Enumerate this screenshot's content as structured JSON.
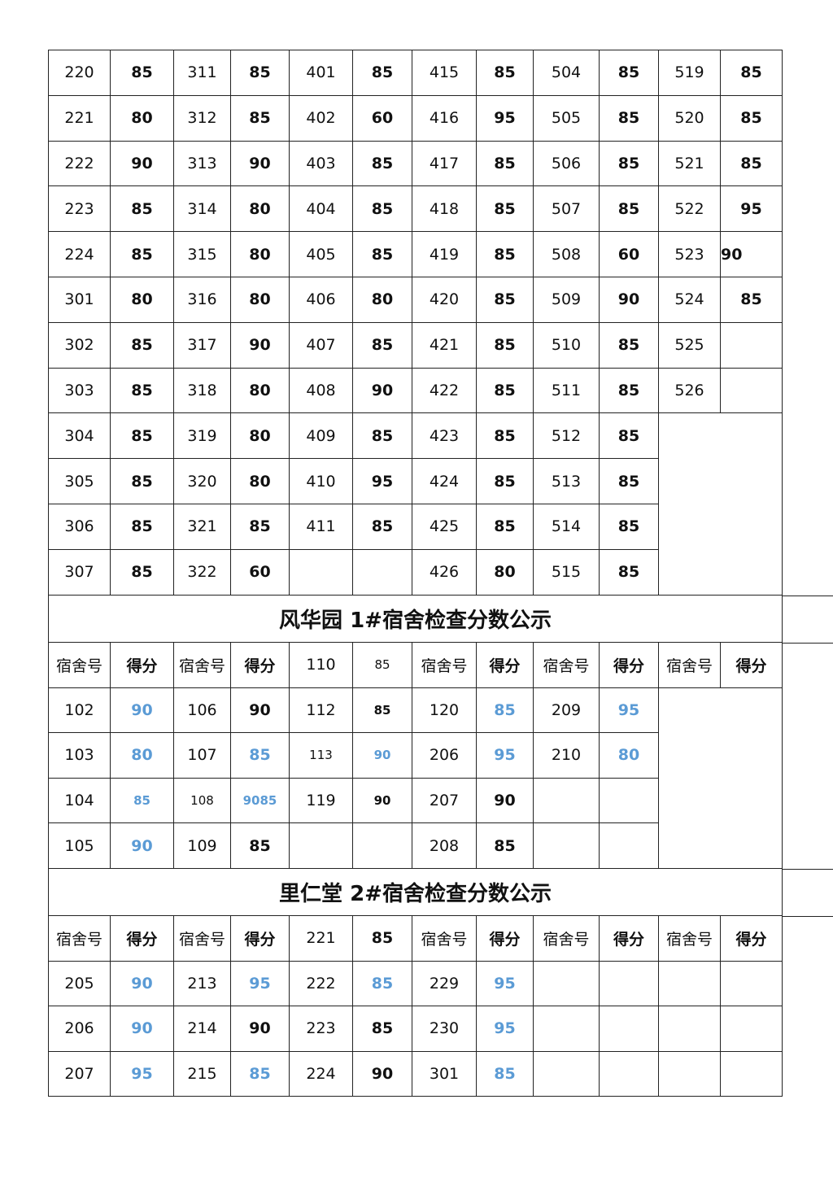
{
  "colors": {
    "blue_score": "#5b9bd5",
    "text": "#111111"
  },
  "table1": {
    "rows": [
      [
        [
          "220",
          "r"
        ],
        [
          "85",
          "b"
        ],
        [
          "311",
          "r"
        ],
        [
          "85",
          "b"
        ],
        [
          "401",
          "r"
        ],
        [
          "85",
          "b"
        ],
        [
          "415",
          "r"
        ],
        [
          "85",
          "b"
        ],
        [
          "504",
          "r"
        ],
        [
          "85",
          "b"
        ],
        [
          "519",
          "r"
        ],
        [
          "85",
          "b"
        ]
      ],
      [
        [
          "221",
          "r"
        ],
        [
          "80",
          "b"
        ],
        [
          "312",
          "r"
        ],
        [
          "85",
          "b"
        ],
        [
          "402",
          "r"
        ],
        [
          "60",
          "b"
        ],
        [
          "416",
          "r"
        ],
        [
          "95",
          "b"
        ],
        [
          "505",
          "r"
        ],
        [
          "85",
          "b"
        ],
        [
          "520",
          "r"
        ],
        [
          "85",
          "b"
        ]
      ],
      [
        [
          "222",
          "r"
        ],
        [
          "90",
          "b"
        ],
        [
          "313",
          "r"
        ],
        [
          "90",
          "b"
        ],
        [
          "403",
          "r"
        ],
        [
          "85",
          "b"
        ],
        [
          "417",
          "r"
        ],
        [
          "85",
          "b"
        ],
        [
          "506",
          "r"
        ],
        [
          "85",
          "b"
        ],
        [
          "521",
          "r"
        ],
        [
          "85",
          "b"
        ]
      ],
      [
        [
          "223",
          "r"
        ],
        [
          "85",
          "b"
        ],
        [
          "314",
          "r"
        ],
        [
          "80",
          "b"
        ],
        [
          "404",
          "r"
        ],
        [
          "85",
          "b"
        ],
        [
          "418",
          "r"
        ],
        [
          "85",
          "b"
        ],
        [
          "507",
          "r"
        ],
        [
          "85",
          "b"
        ],
        [
          "522",
          "r"
        ],
        [
          "95",
          "b"
        ]
      ],
      [
        [
          "224",
          "r"
        ],
        [
          "85",
          "b"
        ],
        [
          "315",
          "r"
        ],
        [
          "80",
          "b"
        ],
        [
          "405",
          "r"
        ],
        [
          "85",
          "b"
        ],
        [
          "419",
          "r"
        ],
        [
          "85",
          "b"
        ],
        [
          "508",
          "r"
        ],
        [
          "60",
          "b"
        ],
        [
          "523",
          "r"
        ],
        [
          "90",
          "b left"
        ]
      ],
      [
        [
          "301",
          "r"
        ],
        [
          "80",
          "b"
        ],
        [
          "316",
          "r"
        ],
        [
          "80",
          "b"
        ],
        [
          "406",
          "r"
        ],
        [
          "80",
          "b"
        ],
        [
          "420",
          "r"
        ],
        [
          "85",
          "b"
        ],
        [
          "509",
          "r"
        ],
        [
          "90",
          "b"
        ],
        [
          "524",
          "r"
        ],
        [
          "85",
          "b"
        ]
      ],
      [
        [
          "302",
          "r"
        ],
        [
          "85",
          "b"
        ],
        [
          "317",
          "r"
        ],
        [
          "90",
          "b"
        ],
        [
          "407",
          "r"
        ],
        [
          "85",
          "b"
        ],
        [
          "421",
          "r"
        ],
        [
          "85",
          "b"
        ],
        [
          "510",
          "r"
        ],
        [
          "85",
          "b"
        ],
        [
          "525",
          "r"
        ],
        [
          "",
          "r"
        ]
      ],
      [
        [
          "303",
          "r"
        ],
        [
          "85",
          "b"
        ],
        [
          "318",
          "r"
        ],
        [
          "80",
          "b"
        ],
        [
          "408",
          "r"
        ],
        [
          "90",
          "b"
        ],
        [
          "422",
          "r"
        ],
        [
          "85",
          "b"
        ],
        [
          "511",
          "r"
        ],
        [
          "85",
          "b"
        ],
        [
          "526",
          "r"
        ],
        [
          "",
          "r"
        ]
      ],
      [
        [
          "304",
          "r"
        ],
        [
          "85",
          "b"
        ],
        [
          "319",
          "r"
        ],
        [
          "80",
          "b"
        ],
        [
          "409",
          "r"
        ],
        [
          "85",
          "b"
        ],
        [
          "423",
          "r"
        ],
        [
          "85",
          "b"
        ],
        [
          "512",
          "r"
        ],
        [
          "85",
          "b"
        ]
      ],
      [
        [
          "305",
          "r"
        ],
        [
          "85",
          "b"
        ],
        [
          "320",
          "r"
        ],
        [
          "80",
          "b"
        ],
        [
          "410",
          "r"
        ],
        [
          "95",
          "b"
        ],
        [
          "424",
          "r"
        ],
        [
          "85",
          "b"
        ],
        [
          "513",
          "r"
        ],
        [
          "85",
          "b"
        ]
      ],
      [
        [
          "306",
          "r"
        ],
        [
          "85",
          "b"
        ],
        [
          "321",
          "r"
        ],
        [
          "85",
          "b"
        ],
        [
          "411",
          "r"
        ],
        [
          "85",
          "b"
        ],
        [
          "425",
          "r"
        ],
        [
          "85",
          "b"
        ],
        [
          "514",
          "r"
        ],
        [
          "85",
          "b"
        ]
      ],
      [
        [
          "307",
          "r"
        ],
        [
          "85",
          "b"
        ],
        [
          "322",
          "r"
        ],
        [
          "60",
          "b"
        ],
        [
          "",
          "r"
        ],
        [
          "",
          "r"
        ],
        [
          "426",
          "r"
        ],
        [
          "80",
          "b"
        ],
        [
          "515",
          "r"
        ],
        [
          "85",
          "b"
        ]
      ]
    ]
  },
  "table2": {
    "title": "风华园 1#宿舍检查分数公示",
    "rows": [
      [
        [
          "宿舍号",
          "r"
        ],
        [
          "得分",
          "b"
        ],
        [
          "宿舍号",
          "r"
        ],
        [
          "得分",
          "b"
        ],
        [
          "110",
          "r"
        ],
        [
          "85",
          "r sm"
        ],
        [
          "宿舍号",
          "r"
        ],
        [
          "得分",
          "b"
        ],
        [
          "宿舍号",
          "r"
        ],
        [
          "得分",
          "b"
        ],
        [
          "宿舍号",
          "r"
        ],
        [
          "得分",
          "b"
        ]
      ],
      [
        [
          "102",
          "r"
        ],
        [
          "90",
          "blue"
        ],
        [
          "106",
          "r"
        ],
        [
          "90",
          "b"
        ],
        [
          "112",
          "r"
        ],
        [
          "85",
          "b sm"
        ],
        [
          "120",
          "r"
        ],
        [
          "85",
          "blue"
        ],
        [
          "209",
          "r"
        ],
        [
          "95",
          "blue"
        ]
      ],
      [
        [
          "103",
          "r"
        ],
        [
          "80",
          "blue"
        ],
        [
          "107",
          "r"
        ],
        [
          "85",
          "blue"
        ],
        [
          "113",
          "r sm"
        ],
        [
          "90",
          "blue sm"
        ],
        [
          "206",
          "r"
        ],
        [
          "95",
          "blue"
        ],
        [
          "210",
          "r"
        ],
        [
          "80",
          "blue"
        ]
      ],
      [
        [
          "104",
          "r"
        ],
        [
          "85",
          "blue sm"
        ],
        [
          "108",
          "r sm"
        ],
        [
          "9085",
          "blue sm"
        ],
        [
          "119",
          "r"
        ],
        [
          "90",
          "b sm"
        ],
        [
          "207",
          "r"
        ],
        [
          "90",
          "b"
        ],
        [
          "",
          "r"
        ],
        [
          "",
          "r"
        ]
      ],
      [
        [
          "105",
          "r"
        ],
        [
          "90",
          "blue"
        ],
        [
          "109",
          "r"
        ],
        [
          "85",
          "b"
        ],
        [
          "",
          "r"
        ],
        [
          "",
          "r"
        ],
        [
          "208",
          "r"
        ],
        [
          "85",
          "b"
        ],
        [
          "",
          "r"
        ],
        [
          "",
          "r"
        ]
      ]
    ]
  },
  "table3": {
    "title": "里仁堂 2#宿舍检查分数公示",
    "rows": [
      [
        [
          "宿舍号",
          "r"
        ],
        [
          "得分",
          "b"
        ],
        [
          "宿舍号",
          "r"
        ],
        [
          "得分",
          "b"
        ],
        [
          "221",
          "r"
        ],
        [
          "85",
          "b"
        ],
        [
          "宿舍号",
          "r"
        ],
        [
          "得分",
          "b"
        ],
        [
          "宿舍号",
          "r"
        ],
        [
          "得分",
          "b"
        ],
        [
          "宿舍号",
          "r"
        ],
        [
          "得分",
          "b"
        ]
      ],
      [
        [
          "205",
          "r"
        ],
        [
          "90",
          "blue"
        ],
        [
          "213",
          "r"
        ],
        [
          "95",
          "blue"
        ],
        [
          "222",
          "r"
        ],
        [
          "85",
          "blue"
        ],
        [
          "229",
          "r"
        ],
        [
          "95",
          "blue"
        ],
        [
          "",
          "r"
        ],
        [
          "",
          "r"
        ],
        [
          "",
          "r"
        ],
        [
          "",
          "r"
        ]
      ],
      [
        [
          "206",
          "r"
        ],
        [
          "90",
          "blue"
        ],
        [
          "214",
          "r"
        ],
        [
          "90",
          "b"
        ],
        [
          "223",
          "r"
        ],
        [
          "85",
          "b"
        ],
        [
          "230",
          "r"
        ],
        [
          "95",
          "blue"
        ],
        [
          "",
          "r"
        ],
        [
          "",
          "r"
        ],
        [
          "",
          "r"
        ],
        [
          "",
          "r"
        ]
      ],
      [
        [
          "207",
          "r"
        ],
        [
          "95",
          "blue"
        ],
        [
          "215",
          "r"
        ],
        [
          "85",
          "blue"
        ],
        [
          "224",
          "r"
        ],
        [
          "90",
          "b"
        ],
        [
          "301",
          "r"
        ],
        [
          "85",
          "blue"
        ],
        [
          "",
          "r"
        ],
        [
          "",
          "r"
        ],
        [
          "",
          "r"
        ],
        [
          "",
          "r"
        ]
      ]
    ]
  }
}
